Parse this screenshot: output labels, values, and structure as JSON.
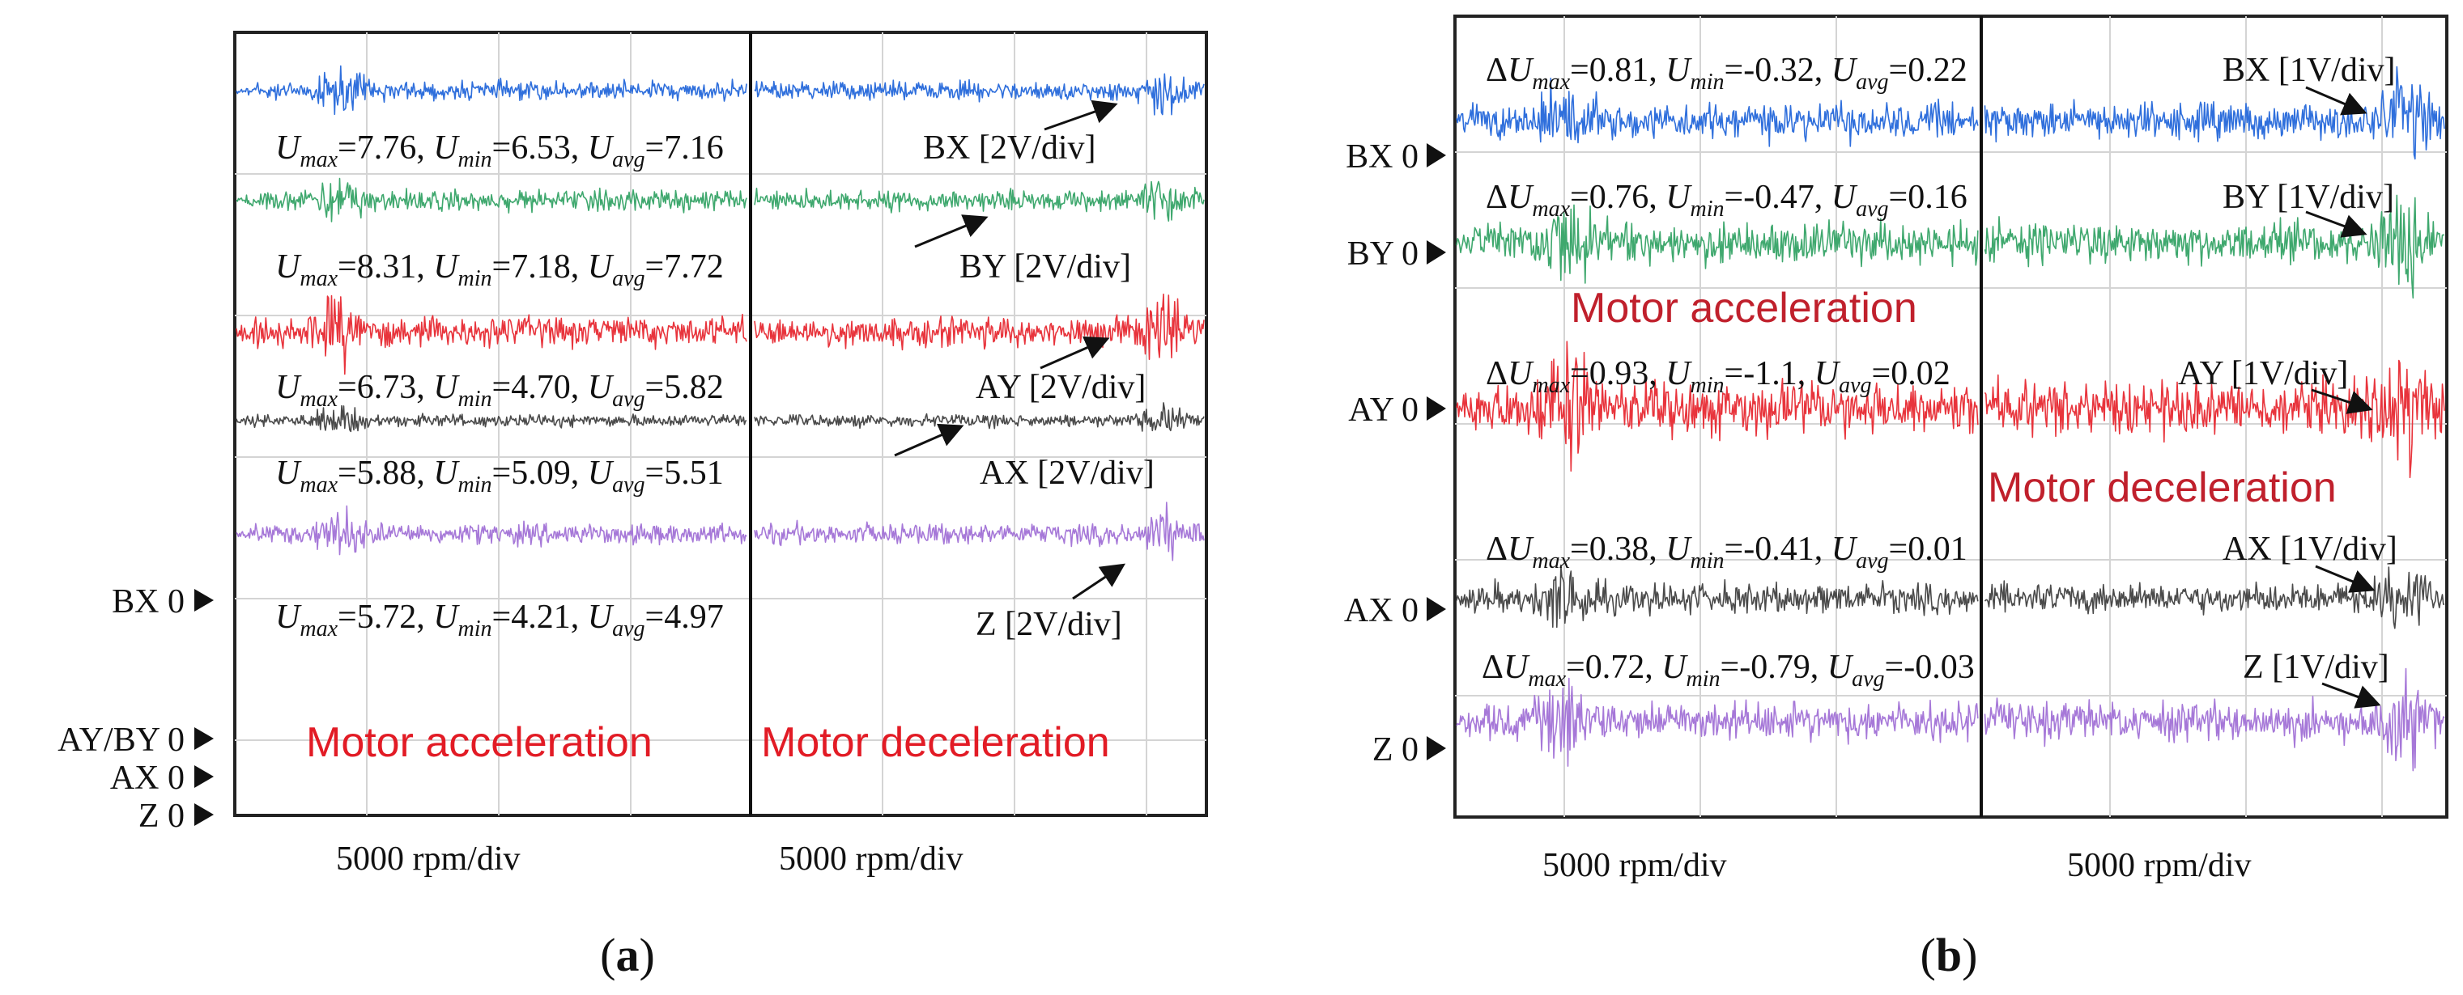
{
  "colors": {
    "BX": "#2f6fdc",
    "BY": "#3fa86e",
    "AY": "#e8343c",
    "AX": "#4a4a4a",
    "Z": "#a678d8",
    "phase": "#e21b25"
  },
  "chart_data": [
    {
      "type": "line",
      "panel": "a",
      "caption": "(a)",
      "x_unit_labels": [
        "5000 rpm/div",
        "5000 rpm/div"
      ],
      "phases": [
        "Motor acceleration",
        "Motor deceleration"
      ],
      "zero_markers": [
        "BX 0",
        "AY/BY 0",
        "AX 0",
        "Z 0"
      ],
      "series": [
        {
          "name": "BX",
          "color": "#2f6fdc",
          "scale": "BX [2V/div]",
          "stats": {
            "Umax": "7.76",
            "Umin": "6.53",
            "Uavg": "7.16"
          }
        },
        {
          "name": "BY",
          "color": "#3fa86e",
          "scale": "BY [2V/div]",
          "stats": {
            "Umax": "8.31",
            "Umin": "7.18",
            "Uavg": "7.72"
          }
        },
        {
          "name": "AY",
          "color": "#e8343c",
          "scale": "AY [2V/div]",
          "stats": {
            "Umax": "6.73",
            "Umin": "4.70",
            "Uavg": "5.82"
          }
        },
        {
          "name": "AX",
          "color": "#4a4a4a",
          "scale": "AX [2V/div]",
          "stats": {
            "Umax": "5.88",
            "Umin": "5.09",
            "Uavg": "5.51"
          }
        },
        {
          "name": "Z",
          "color": "#a678d8",
          "scale": "Z [2V/div]",
          "stats": {
            "Umax": "5.72",
            "Umin": "4.21",
            "Uavg": "4.97"
          }
        }
      ]
    },
    {
      "type": "line",
      "panel": "b",
      "caption": "(b)",
      "x_unit_labels": [
        "5000 rpm/div",
        "5000 rpm/div"
      ],
      "phases": [
        "Motor acceleration",
        "Motor deceleration"
      ],
      "zero_markers": [
        "BX 0",
        "BY 0",
        "AY 0",
        "AX 0",
        "Z 0"
      ],
      "series": [
        {
          "name": "BX",
          "color": "#2f6fdc",
          "scale": "BX [1V/div]",
          "stats": {
            "dUmax": "0.81",
            "Umin": "-0.32",
            "Uavg": "0.22"
          }
        },
        {
          "name": "BY",
          "color": "#3fa86e",
          "scale": "BY [1V/div]",
          "stats": {
            "dUmax": "0.76",
            "Umin": "-0.47",
            "Uavg": "0.16"
          }
        },
        {
          "name": "AY",
          "color": "#e8343c",
          "scale": "AY [1V/div]",
          "stats": {
            "dUmax": "0.93",
            "Umin": "-1.1",
            "Uavg": "0.02"
          }
        },
        {
          "name": "AX",
          "color": "#4a4a4a",
          "scale": "AX [1V/div]",
          "stats": {
            "dUmax": "0.38",
            "Umin": "-0.41",
            "Uavg": "0.01"
          }
        },
        {
          "name": "Z",
          "color": "#a678d8",
          "scale": "Z [1V/div]",
          "stats": {
            "dUmax": "0.72",
            "Umin": "-0.79",
            "Uavg": "-0.03"
          }
        }
      ]
    }
  ]
}
